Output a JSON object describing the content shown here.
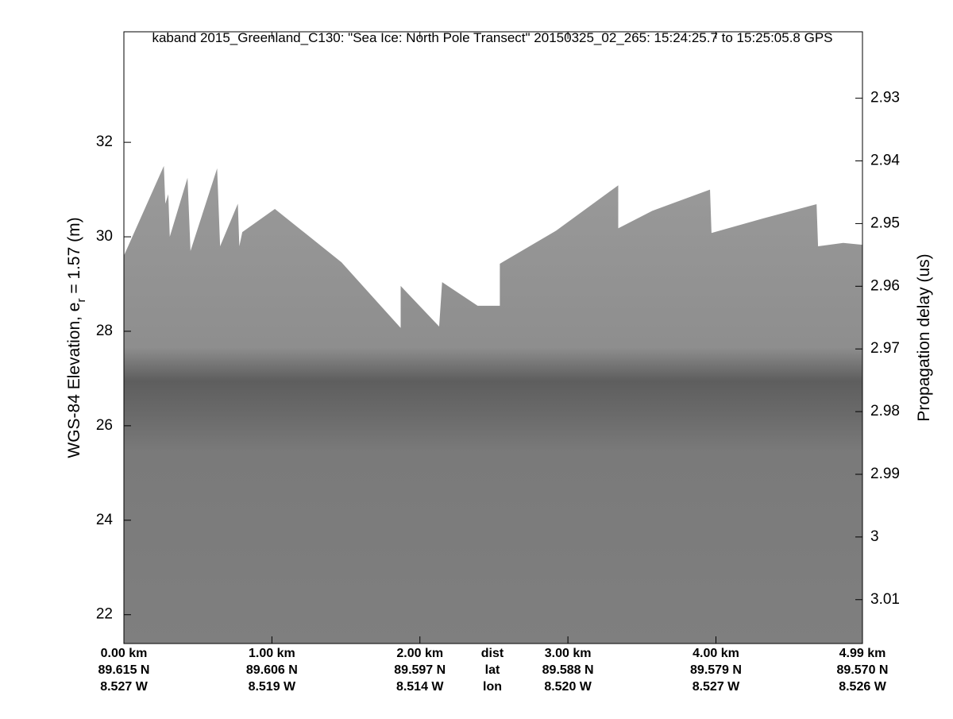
{
  "chart_data": {
    "type": "echogram",
    "title": "kaband 2015_Greenland_C130: \"Sea Ice: North Pole Transect\"  20150325_02_265: 15:24:25.7 to 15:25:05.8 GPS",
    "ylabel": "WGS-84 Elevation, e",
    "ylabel_sub": "r",
    "ylabel_rest": " = 1.57 (m)",
    "y2label": "Propagation delay (us)",
    "xlim": [
      0,
      4.99
    ],
    "ylim": [
      21.39,
      34.34
    ],
    "y2lim": [
      3.017,
      2.9194
    ],
    "xticks": [
      {
        "value": 0,
        "label": "0.00 km"
      },
      {
        "value": 1,
        "label": "1.00 km"
      },
      {
        "value": 2,
        "label": "2.00 km"
      },
      {
        "value": 3,
        "label": "3.00 km"
      },
      {
        "value": 4,
        "label": "4.00 km"
      },
      {
        "value": 4.99,
        "label": "4.99 km"
      }
    ],
    "lat_labels": [
      "89.615 N",
      "89.606 N",
      "89.597 N",
      "89.588 N",
      "89.579 N",
      "89.570 N"
    ],
    "lon_labels": [
      "8.527 W",
      "8.519 W",
      "8.514 W",
      "8.520 W",
      "8.527 W",
      "8.526 W"
    ],
    "row_labels": [
      "dist",
      "lat",
      "lon"
    ],
    "yticks": [
      22,
      24,
      26,
      28,
      30,
      32
    ],
    "y2ticks": [
      2.93,
      2.94,
      2.95,
      2.96,
      2.97,
      2.98,
      2.99,
      3,
      3.01
    ],
    "surface": {
      "distance": [
        0,
        0.27,
        0.28,
        0.3,
        0.31,
        0.43,
        0.45,
        0.63,
        0.65,
        0.77,
        0.78,
        0.8,
        1.02,
        1.47,
        1.87,
        1.87,
        2.13,
        2.15,
        2.39,
        2.54,
        2.54,
        2.92,
        3.34,
        3.34,
        3.57,
        3.96,
        3.97,
        4.32,
        4.68,
        4.69,
        4.86,
        4.99
      ],
      "elevation": [
        29.6,
        31.5,
        30.7,
        30.9,
        30.0,
        31.25,
        29.7,
        31.45,
        29.8,
        30.7,
        29.8,
        30.1,
        30.59,
        29.46,
        28.07,
        28.96,
        28.1,
        29.04,
        28.54,
        28.54,
        29.43,
        30.13,
        31.09,
        30.18,
        30.55,
        31.0,
        30.08,
        30.39,
        30.69,
        29.8,
        29.87,
        29.83
      ]
    }
  }
}
